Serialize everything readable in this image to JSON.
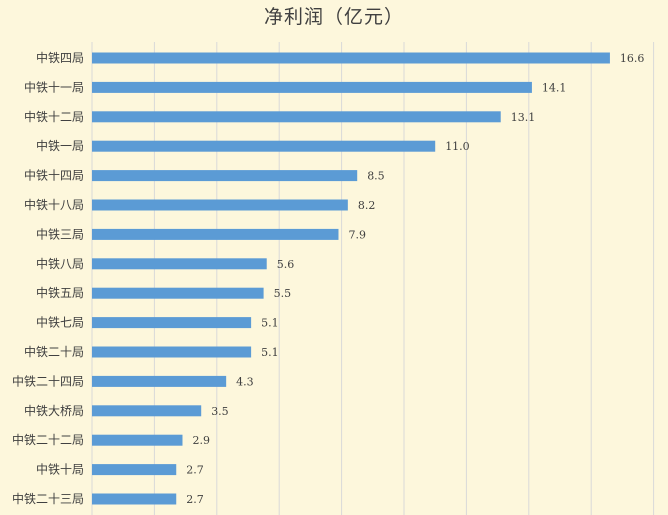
{
  "chart_data": {
    "type": "bar",
    "orientation": "horizontal",
    "title": "净利润（亿元）",
    "xlabel": "",
    "ylabel": "",
    "categories": [
      "中铁四局",
      "中铁十一局",
      "中铁十二局",
      "中铁一局",
      "中铁十四局",
      "中铁十八局",
      "中铁三局",
      "中铁八局",
      "中铁五局",
      "中铁七局",
      "中铁二十局",
      "中铁二十四局",
      "中铁大桥局",
      "中铁二十二局",
      "中铁十局",
      "中铁二十三局"
    ],
    "values": [
      16.6,
      14.1,
      13.1,
      11.0,
      8.5,
      8.2,
      7.9,
      5.6,
      5.5,
      5.1,
      5.1,
      4.3,
      3.5,
      2.9,
      2.7,
      2.7
    ],
    "data_labels": [
      "16.6",
      "14.1",
      "13.1",
      "11.0",
      "8.5",
      "8.2",
      "7.9",
      "5.6",
      "5.5",
      "5.1",
      "5.1",
      "4.3",
      "3.5",
      "2.9",
      "2.7",
      "2.7"
    ],
    "xlim": [
      0,
      18
    ],
    "grid": true,
    "legend": "none",
    "bar_color": "#5b9bd5",
    "background_color": "#fdf7dc",
    "grid_color": "#d9d9d9"
  }
}
